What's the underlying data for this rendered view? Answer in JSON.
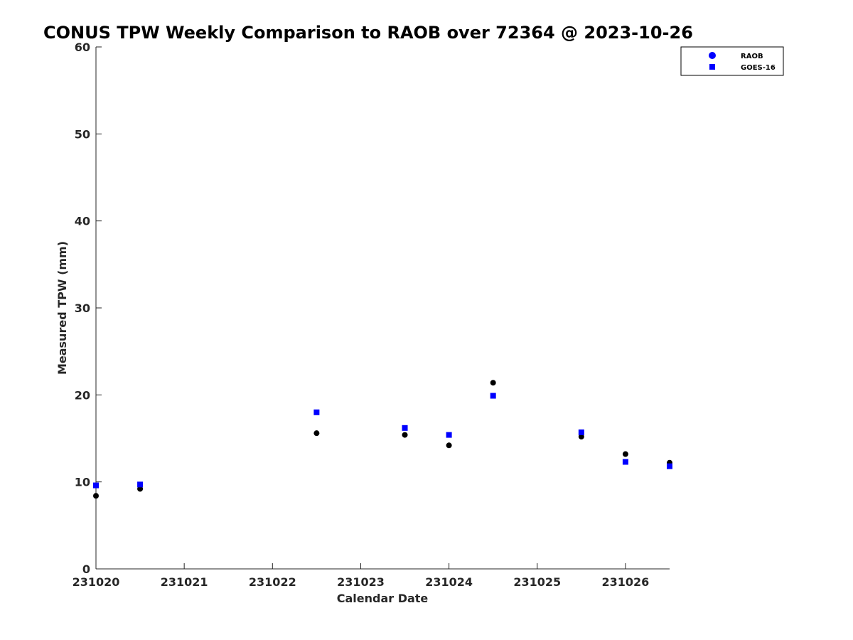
{
  "chart_data": {
    "type": "scatter",
    "title": "CONUS TPW Weekly Comparison to RAOB over 72364 @ 2023-10-26",
    "xlabel": "Calendar Date",
    "ylabel": "Measured TPW (mm)",
    "xlim": [
      "2023-10-20",
      "2023-10-26 12:00"
    ],
    "ylim": [
      0,
      60
    ],
    "x_ticks": [
      "2023-10-20",
      "2023-10-21",
      "2023-10-22",
      "2023-10-23",
      "2023-10-24",
      "2023-10-25",
      "2023-10-26"
    ],
    "x_tick_labels": [
      "231020",
      "231021",
      "231022",
      "231023",
      "231024",
      "231025",
      "231026"
    ],
    "y_ticks": [
      0,
      10,
      20,
      30,
      40,
      50,
      60
    ],
    "grid": false,
    "legend_position": "top-right",
    "series": [
      {
        "name": "RAOB",
        "marker": "circle",
        "legend_color": "#0000ff",
        "color": "#000000",
        "points": [
          {
            "x": "2023-10-20 00:00",
            "y": 8.4
          },
          {
            "x": "2023-10-20 12:00",
            "y": 9.2
          },
          {
            "x": "2023-10-22 12:00",
            "y": 15.6
          },
          {
            "x": "2023-10-23 12:00",
            "y": 15.4
          },
          {
            "x": "2023-10-24 00:00",
            "y": 14.2
          },
          {
            "x": "2023-10-24 12:00",
            "y": 21.4
          },
          {
            "x": "2023-10-25 12:00",
            "y": 15.2
          },
          {
            "x": "2023-10-26 00:00",
            "y": 13.2
          },
          {
            "x": "2023-10-26 12:00",
            "y": 12.2
          }
        ]
      },
      {
        "name": "GOES-16",
        "marker": "square",
        "legend_color": "#0000ff",
        "color": "#0000ff",
        "points": [
          {
            "x": "2023-10-20 00:00",
            "y": 9.6
          },
          {
            "x": "2023-10-20 12:00",
            "y": 9.7
          },
          {
            "x": "2023-10-22 12:00",
            "y": 18.0
          },
          {
            "x": "2023-10-23 12:00",
            "y": 16.2
          },
          {
            "x": "2023-10-24 00:00",
            "y": 15.4
          },
          {
            "x": "2023-10-24 12:00",
            "y": 19.9
          },
          {
            "x": "2023-10-25 12:00",
            "y": 15.7
          },
          {
            "x": "2023-10-26 00:00",
            "y": 12.3
          },
          {
            "x": "2023-10-26 12:00",
            "y": 11.8
          }
        ]
      }
    ]
  }
}
